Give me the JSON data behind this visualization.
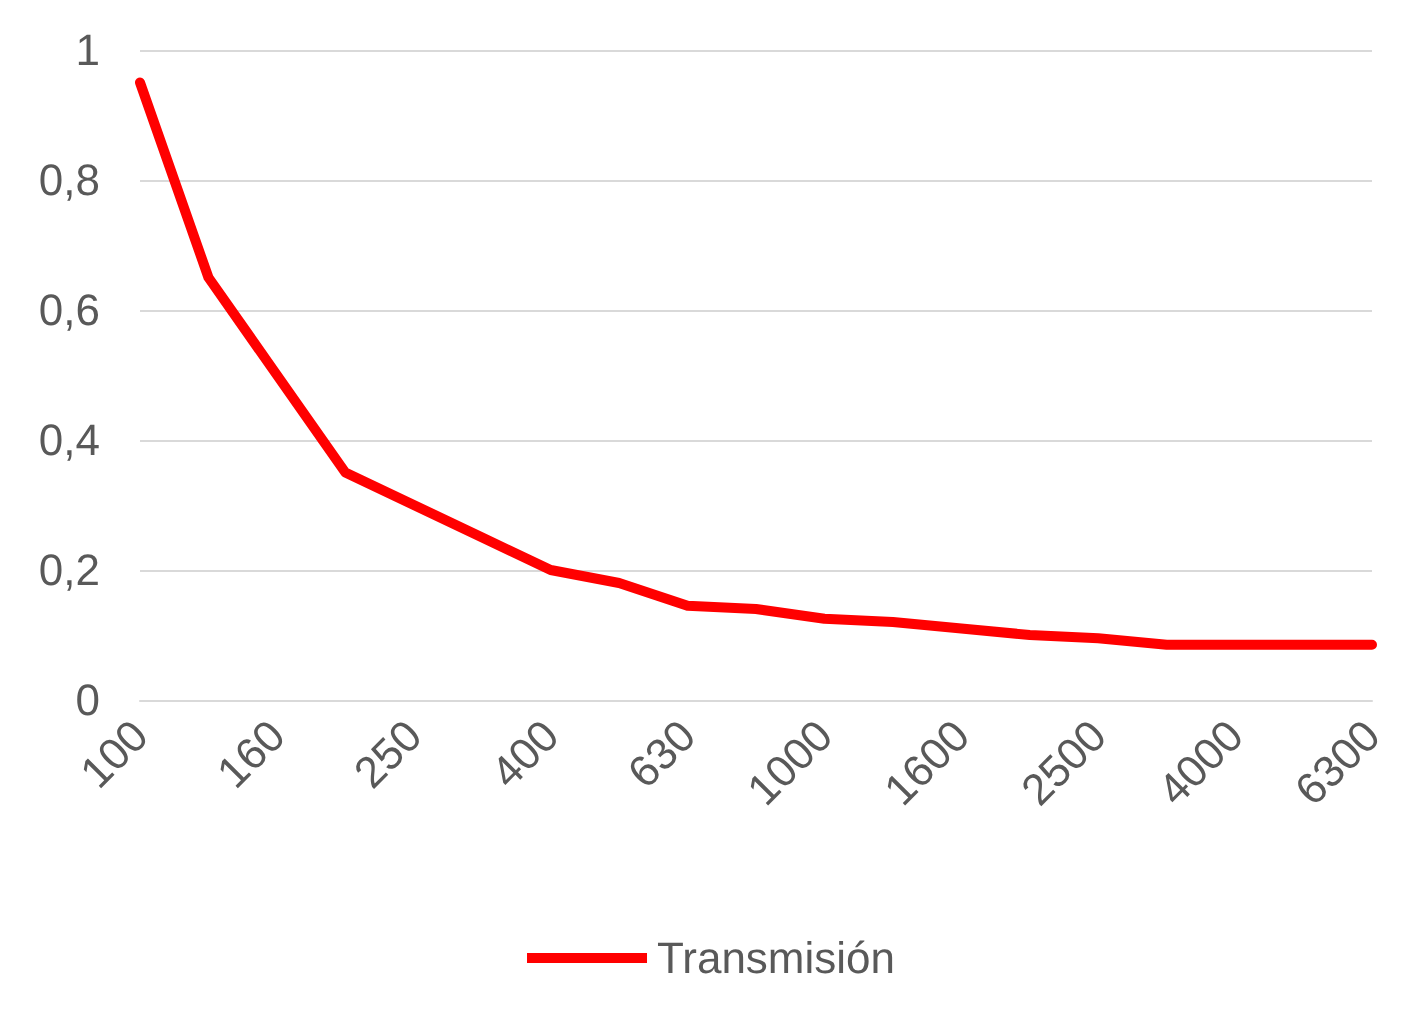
{
  "chart_data": {
    "type": "line",
    "categories": [
      "100",
      null,
      "160",
      null,
      "250",
      null,
      "400",
      null,
      "630",
      null,
      "1000",
      null,
      "1600",
      null,
      "2500",
      null,
      "4000",
      null,
      "6300"
    ],
    "series": [
      {
        "name": "Transmisión",
        "color": "#ff0000",
        "values": [
          0.95,
          0.65,
          0.5,
          0.35,
          0.3,
          0.25,
          0.2,
          0.18,
          0.145,
          0.14,
          0.125,
          0.12,
          0.11,
          0.1,
          0.095,
          0.085,
          0.085,
          0.085,
          0.085
        ]
      }
    ],
    "ylim": [
      0,
      1
    ],
    "yticks": [
      0,
      {
        "value": 0.2,
        "label": "0,2"
      },
      {
        "value": 0.4,
        "label": "0,4"
      },
      {
        "value": 0.6,
        "label": "0,6"
      },
      {
        "value": 0.8,
        "label": "0,8"
      },
      1
    ],
    "grid": "y",
    "legend": "bottom",
    "marker": "none",
    "line_style": "solid"
  }
}
